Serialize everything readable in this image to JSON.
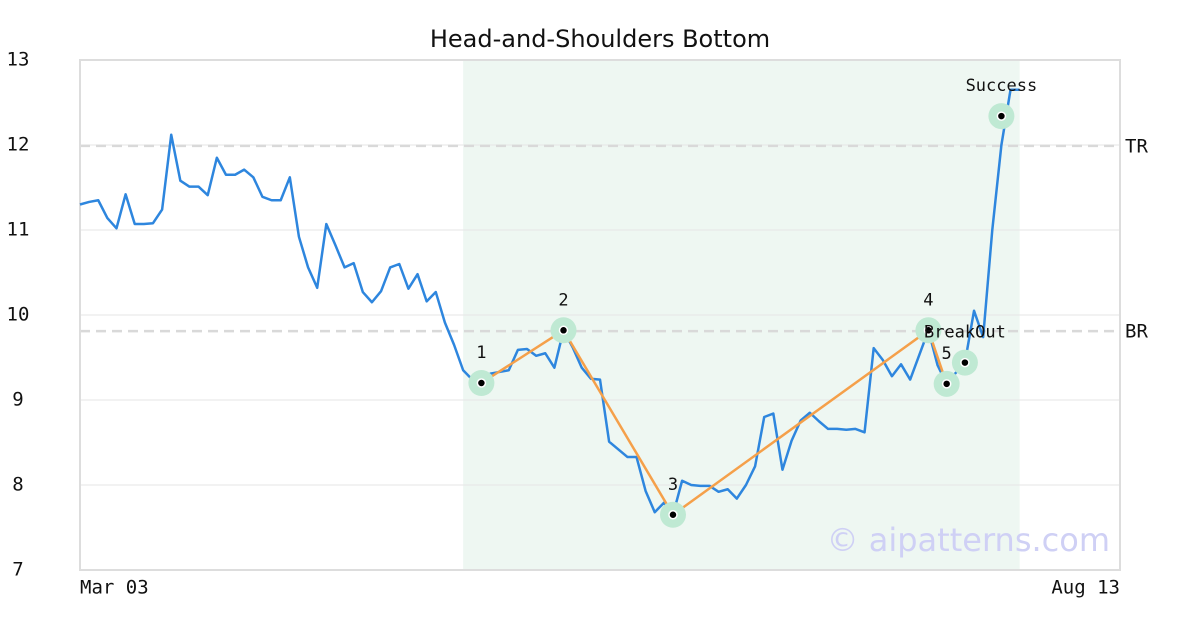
{
  "chart_data": {
    "type": "line",
    "title": "Head-and-Shoulders Bottom",
    "xlim": [
      0,
      114
    ],
    "xticks": [
      {
        "value": 0,
        "label": "Mar 03"
      },
      {
        "value": 114,
        "label": "Aug 13"
      }
    ],
    "ylim": [
      7,
      13
    ],
    "yticks": [
      7,
      8,
      9,
      10,
      11,
      12,
      13
    ],
    "grid": true,
    "highlight_range": [
      42,
      103
    ],
    "highlight_color": "#eef7f2",
    "series": [
      {
        "color": "#2e86de",
        "x": [
          0,
          1,
          2,
          3,
          4,
          5,
          6,
          7,
          8,
          9,
          10,
          11,
          12,
          13,
          14,
          15,
          16,
          17,
          18,
          19,
          20,
          21,
          22,
          23,
          24,
          25,
          26,
          27,
          28,
          29,
          30,
          31,
          32,
          33,
          34,
          35,
          36,
          37,
          38,
          39,
          40,
          41,
          42,
          43,
          44,
          45,
          46,
          47,
          48,
          49,
          50,
          51,
          52,
          53,
          54,
          55,
          56,
          57,
          58,
          59,
          60,
          61,
          62,
          63,
          64,
          65,
          66,
          67,
          68,
          69,
          70,
          71,
          72,
          73,
          74,
          75,
          76,
          77,
          78,
          79,
          80,
          81,
          82,
          83,
          84,
          85,
          86,
          87,
          88,
          89,
          90,
          91,
          92,
          93,
          94,
          95,
          96,
          97,
          98,
          99,
          100,
          101,
          102,
          103
        ],
        "values": [
          11.3,
          11.33,
          11.35,
          11.14,
          11.02,
          11.42,
          11.07,
          11.07,
          11.08,
          11.24,
          12.12,
          11.58,
          11.51,
          11.51,
          11.41,
          11.85,
          11.65,
          11.65,
          11.71,
          11.62,
          11.39,
          11.35,
          11.35,
          11.62,
          10.92,
          10.56,
          10.32,
          11.07,
          10.82,
          10.56,
          10.61,
          10.27,
          10.15,
          10.28,
          10.56,
          10.6,
          10.31,
          10.48,
          10.16,
          10.27,
          9.91,
          9.65,
          9.35,
          9.24,
          9.2,
          9.31,
          9.33,
          9.35,
          9.59,
          9.6,
          9.52,
          9.55,
          9.38,
          9.82,
          9.62,
          9.38,
          9.25,
          9.24,
          8.51,
          8.42,
          8.33,
          8.33,
          7.93,
          7.68,
          7.79,
          7.65,
          8.05,
          8.0,
          7.99,
          7.99,
          7.92,
          7.95,
          7.84,
          8.0,
          8.22,
          8.8,
          8.84,
          8.18,
          8.52,
          8.76,
          8.85,
          8.75,
          8.66,
          8.66,
          8.65,
          8.66,
          8.62,
          9.61,
          9.47,
          9.28,
          9.42,
          9.24,
          9.53,
          9.82,
          9.41,
          9.19,
          9.32,
          9.44,
          10.05,
          9.74,
          11.0,
          12.0,
          12.65,
          12.65
        ]
      }
    ],
    "pattern_color": "#f5a04a",
    "levels": [
      {
        "label": "TR",
        "value": 11.99
      },
      {
        "label": "BR",
        "value": 9.81
      }
    ],
    "pivots": [
      {
        "label": "1",
        "x": 44,
        "y": 9.2
      },
      {
        "label": "2",
        "x": 53,
        "y": 9.82
      },
      {
        "label": "3",
        "x": 65,
        "y": 7.65
      },
      {
        "label": "4",
        "x": 93,
        "y": 9.82
      },
      {
        "label": "5",
        "x": 95,
        "y": 9.19
      }
    ],
    "events": [
      {
        "label": "BreakOut",
        "x": 97,
        "y": 9.44
      },
      {
        "label": "Success",
        "x": 101,
        "y": 12.34
      }
    ],
    "watermark": "© aipatterns.com"
  }
}
